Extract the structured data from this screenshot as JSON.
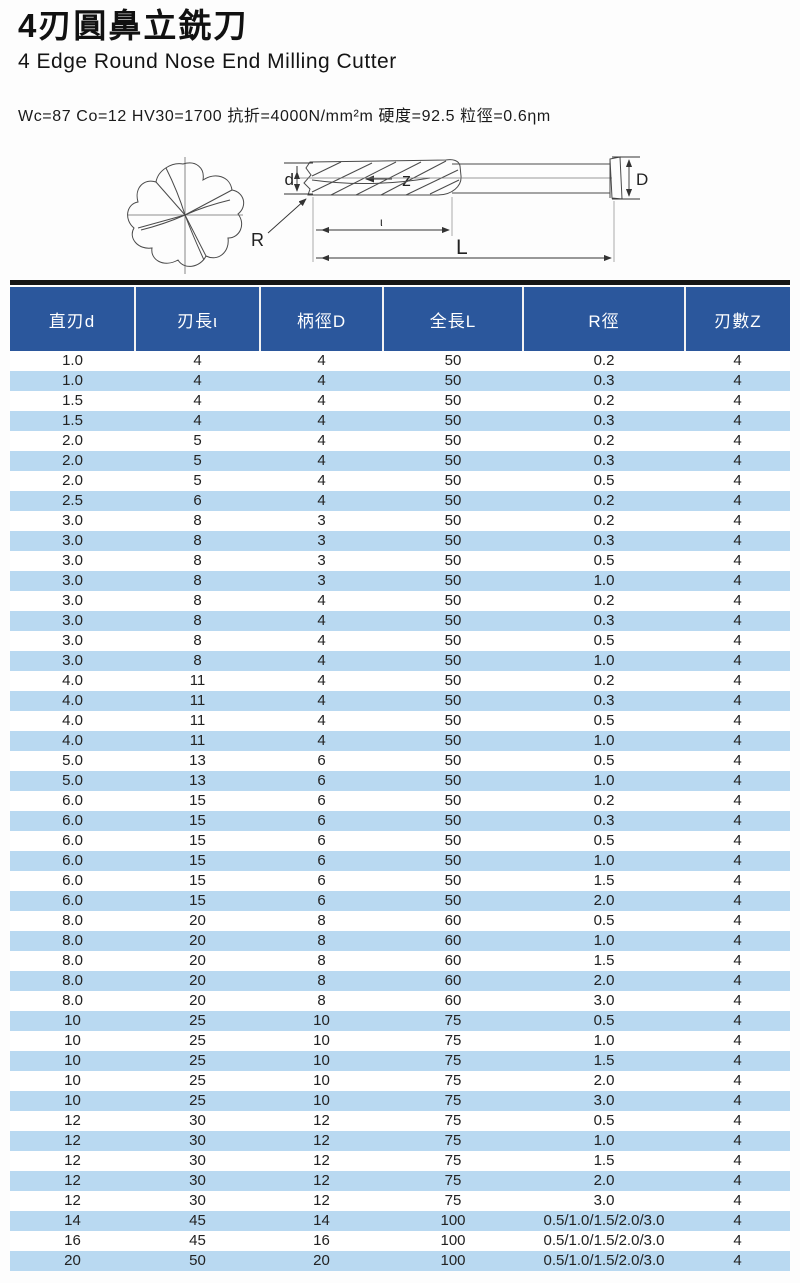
{
  "page": {
    "title_zh": "4刃圓鼻立銑刀",
    "title_en": "4 Edge Round Nose End Milling Cutter",
    "spec_line": "Wc=87 Co=12 HV30=1700 抗折=4000N/mm²m 硬度=92.5 粒徑=0.6ηm"
  },
  "diagram": {
    "labels": {
      "flute_count": "z",
      "cutting_dia": "d",
      "shank_dia": "D",
      "corner_radius": "R",
      "flute_length": "ι",
      "overall_length": "L"
    }
  },
  "table": {
    "headers": [
      "直刃d",
      "刃長ι",
      "柄徑D",
      "全長L",
      "R徑",
      "刃數Z"
    ],
    "rows": [
      [
        "1.0",
        "4",
        "4",
        "50",
        "0.2",
        "4"
      ],
      [
        "1.0",
        "4",
        "4",
        "50",
        "0.3",
        "4"
      ],
      [
        "1.5",
        "4",
        "4",
        "50",
        "0.2",
        "4"
      ],
      [
        "1.5",
        "4",
        "4",
        "50",
        "0.3",
        "4"
      ],
      [
        "2.0",
        "5",
        "4",
        "50",
        "0.2",
        "4"
      ],
      [
        "2.0",
        "5",
        "4",
        "50",
        "0.3",
        "4"
      ],
      [
        "2.0",
        "5",
        "4",
        "50",
        "0.5",
        "4"
      ],
      [
        "2.5",
        "6",
        "4",
        "50",
        "0.2",
        "4"
      ],
      [
        "3.0",
        "8",
        "3",
        "50",
        "0.2",
        "4"
      ],
      [
        "3.0",
        "8",
        "3",
        "50",
        "0.3",
        "4"
      ],
      [
        "3.0",
        "8",
        "3",
        "50",
        "0.5",
        "4"
      ],
      [
        "3.0",
        "8",
        "3",
        "50",
        "1.0",
        "4"
      ],
      [
        "3.0",
        "8",
        "4",
        "50",
        "0.2",
        "4"
      ],
      [
        "3.0",
        "8",
        "4",
        "50",
        "0.3",
        "4"
      ],
      [
        "3.0",
        "8",
        "4",
        "50",
        "0.5",
        "4"
      ],
      [
        "3.0",
        "8",
        "4",
        "50",
        "1.0",
        "4"
      ],
      [
        "4.0",
        "11",
        "4",
        "50",
        "0.2",
        "4"
      ],
      [
        "4.0",
        "11",
        "4",
        "50",
        "0.3",
        "4"
      ],
      [
        "4.0",
        "11",
        "4",
        "50",
        "0.5",
        "4"
      ],
      [
        "4.0",
        "11",
        "4",
        "50",
        "1.0",
        "4"
      ],
      [
        "5.0",
        "13",
        "6",
        "50",
        "0.5",
        "4"
      ],
      [
        "5.0",
        "13",
        "6",
        "50",
        "1.0",
        "4"
      ],
      [
        "6.0",
        "15",
        "6",
        "50",
        "0.2",
        "4"
      ],
      [
        "6.0",
        "15",
        "6",
        "50",
        "0.3",
        "4"
      ],
      [
        "6.0",
        "15",
        "6",
        "50",
        "0.5",
        "4"
      ],
      [
        "6.0",
        "15",
        "6",
        "50",
        "1.0",
        "4"
      ],
      [
        "6.0",
        "15",
        "6",
        "50",
        "1.5",
        "4"
      ],
      [
        "6.0",
        "15",
        "6",
        "50",
        "2.0",
        "4"
      ],
      [
        "8.0",
        "20",
        "8",
        "60",
        "0.5",
        "4"
      ],
      [
        "8.0",
        "20",
        "8",
        "60",
        "1.0",
        "4"
      ],
      [
        "8.0",
        "20",
        "8",
        "60",
        "1.5",
        "4"
      ],
      [
        "8.0",
        "20",
        "8",
        "60",
        "2.0",
        "4"
      ],
      [
        "8.0",
        "20",
        "8",
        "60",
        "3.0",
        "4"
      ],
      [
        "10",
        "25",
        "10",
        "75",
        "0.5",
        "4"
      ],
      [
        "10",
        "25",
        "10",
        "75",
        "1.0",
        "4"
      ],
      [
        "10",
        "25",
        "10",
        "75",
        "1.5",
        "4"
      ],
      [
        "10",
        "25",
        "10",
        "75",
        "2.0",
        "4"
      ],
      [
        "10",
        "25",
        "10",
        "75",
        "3.0",
        "4"
      ],
      [
        "12",
        "30",
        "12",
        "75",
        "0.5",
        "4"
      ],
      [
        "12",
        "30",
        "12",
        "75",
        "1.0",
        "4"
      ],
      [
        "12",
        "30",
        "12",
        "75",
        "1.5",
        "4"
      ],
      [
        "12",
        "30",
        "12",
        "75",
        "2.0",
        "4"
      ],
      [
        "12",
        "30",
        "12",
        "75",
        "3.0",
        "4"
      ],
      [
        "14",
        "45",
        "14",
        "100",
        "0.5/1.0/1.5/2.0/3.0",
        "4"
      ],
      [
        "16",
        "45",
        "16",
        "100",
        "0.5/1.0/1.5/2.0/3.0",
        "4"
      ],
      [
        "20",
        "50",
        "20",
        "100",
        "0.5/1.0/1.5/2.0/3.0",
        "4"
      ]
    ]
  },
  "colors": {
    "header_bg": "#2b579c",
    "stripe_bg": "#b9d9f1",
    "rule_bar": "#161616",
    "body_text": "#222222",
    "header_text": "#ffffff"
  }
}
